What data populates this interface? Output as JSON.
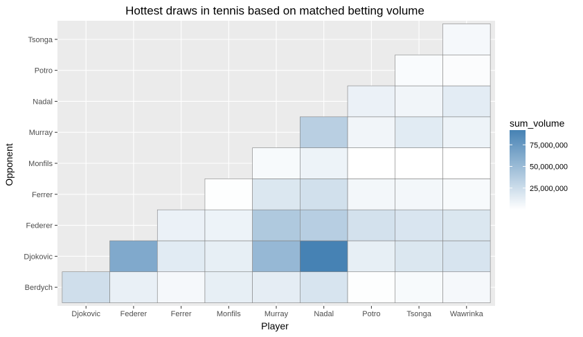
{
  "chart_data": {
    "type": "heatmap",
    "title": "Hottest draws in tennis based on matched betting volume",
    "xlabel": "Player",
    "ylabel": "Opponent",
    "x_categories": [
      "Djokovic",
      "Federer",
      "Ferrer",
      "Monfils",
      "Murray",
      "Nadal",
      "Potro",
      "Tsonga",
      "Wawrinka"
    ],
    "y_categories": [
      "Berdych",
      "Djokovic",
      "Federer",
      "Ferrer",
      "Monfils",
      "Murray",
      "Nadal",
      "Potro",
      "Tsonga"
    ],
    "fill_legend": {
      "title": "sum_volume",
      "breaks": [
        25000000,
        50000000,
        75000000
      ],
      "break_labels": [
        "25,000,000",
        "50,000,000",
        "75,000,000"
      ],
      "min": 0,
      "max": 92000000,
      "low_color": "#FFFFFF",
      "high_color": "#4682B4"
    },
    "cells": [
      {
        "x": "Djokovic",
        "y": "Berdych",
        "value": 24000000
      },
      {
        "x": "Federer",
        "y": "Berdych",
        "value": 11000000
      },
      {
        "x": "Federer",
        "y": "Djokovic",
        "value": 63000000
      },
      {
        "x": "Ferrer",
        "y": "Berdych",
        "value": 5000000
      },
      {
        "x": "Ferrer",
        "y": "Djokovic",
        "value": 15000000
      },
      {
        "x": "Ferrer",
        "y": "Federer",
        "value": 10000000
      },
      {
        "x": "Monfils",
        "y": "Berdych",
        "value": 12000000
      },
      {
        "x": "Monfils",
        "y": "Djokovic",
        "value": 12000000
      },
      {
        "x": "Monfils",
        "y": "Federer",
        "value": 9000000
      },
      {
        "x": "Monfils",
        "y": "Ferrer",
        "value": 1000000
      },
      {
        "x": "Murray",
        "y": "Berdych",
        "value": 13000000
      },
      {
        "x": "Murray",
        "y": "Djokovic",
        "value": 52000000
      },
      {
        "x": "Murray",
        "y": "Federer",
        "value": 40000000
      },
      {
        "x": "Murray",
        "y": "Ferrer",
        "value": 18000000
      },
      {
        "x": "Murray",
        "y": "Monfils",
        "value": 4000000
      },
      {
        "x": "Nadal",
        "y": "Berdych",
        "value": 20000000
      },
      {
        "x": "Nadal",
        "y": "Djokovic",
        "value": 92000000
      },
      {
        "x": "Nadal",
        "y": "Federer",
        "value": 36000000
      },
      {
        "x": "Nadal",
        "y": "Ferrer",
        "value": 23000000
      },
      {
        "x": "Nadal",
        "y": "Monfils",
        "value": 9000000
      },
      {
        "x": "Nadal",
        "y": "Murray",
        "value": 35000000
      },
      {
        "x": "Potro",
        "y": "Berdych",
        "value": 1000000
      },
      {
        "x": "Potro",
        "y": "Djokovic",
        "value": 12000000
      },
      {
        "x": "Potro",
        "y": "Federer",
        "value": 22000000
      },
      {
        "x": "Potro",
        "y": "Ferrer",
        "value": 6000000
      },
      {
        "x": "Potro",
        "y": "Monfils",
        "value": 0
      },
      {
        "x": "Potro",
        "y": "Murray",
        "value": 7000000
      },
      {
        "x": "Potro",
        "y": "Nadal",
        "value": 10000000
      },
      {
        "x": "Tsonga",
        "y": "Berdych",
        "value": 4000000
      },
      {
        "x": "Tsonga",
        "y": "Djokovic",
        "value": 18000000
      },
      {
        "x": "Tsonga",
        "y": "Federer",
        "value": 19000000
      },
      {
        "x": "Tsonga",
        "y": "Ferrer",
        "value": 6000000
      },
      {
        "x": "Tsonga",
        "y": "Monfils",
        "value": 0
      },
      {
        "x": "Tsonga",
        "y": "Murray",
        "value": 15000000
      },
      {
        "x": "Tsonga",
        "y": "Nadal",
        "value": 7000000
      },
      {
        "x": "Tsonga",
        "y": "Potro",
        "value": 3000000
      },
      {
        "x": "Wawrinka",
        "y": "Berdych",
        "value": 5000000
      },
      {
        "x": "Wawrinka",
        "y": "Djokovic",
        "value": 20000000
      },
      {
        "x": "Wawrinka",
        "y": "Federer",
        "value": 18000000
      },
      {
        "x": "Wawrinka",
        "y": "Ferrer",
        "value": 4000000
      },
      {
        "x": "Wawrinka",
        "y": "Monfils",
        "value": 0
      },
      {
        "x": "Wawrinka",
        "y": "Murray",
        "value": 9000000
      },
      {
        "x": "Wawrinka",
        "y": "Nadal",
        "value": 14000000
      },
      {
        "x": "Wawrinka",
        "y": "Potro",
        "value": 2000000
      },
      {
        "x": "Wawrinka",
        "y": "Tsonga",
        "value": 5000000
      }
    ]
  }
}
